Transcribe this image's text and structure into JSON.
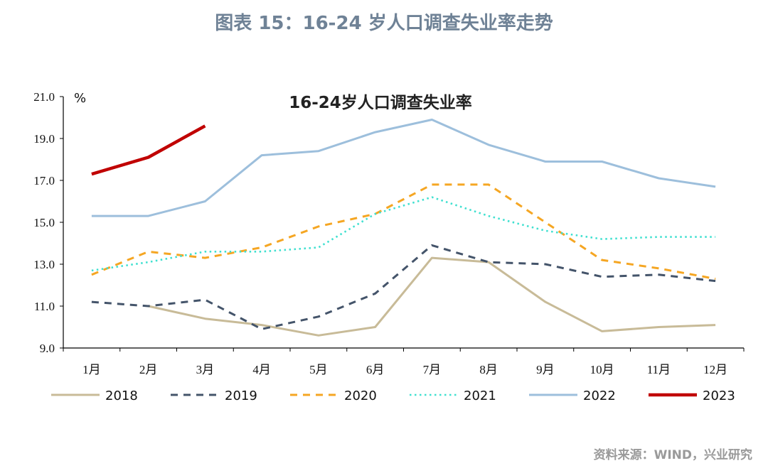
{
  "figure_title": "图表 15：16-24 岁人口调查失业率走势",
  "source_note": "资料来源：WIND，兴业研究",
  "chart_data": {
    "type": "line",
    "title": "16-24岁人口调查失业率",
    "ylabel": "%",
    "categories": [
      "1月",
      "2月",
      "3月",
      "4月",
      "5月",
      "6月",
      "7月",
      "8月",
      "9月",
      "10月",
      "11月",
      "12月"
    ],
    "ylim": [
      9.0,
      21.0
    ],
    "yticks": [
      "9.0",
      "11.0",
      "13.0",
      "15.0",
      "17.0",
      "19.0",
      "21.0"
    ],
    "grid": false,
    "legend_position": "bottom",
    "series": [
      {
        "name": "2018",
        "color": "#c8bb98",
        "style": "solid",
        "values": [
          null,
          11.0,
          10.4,
          10.1,
          9.6,
          10.0,
          13.3,
          13.1,
          11.2,
          9.8,
          10.0,
          10.1
        ]
      },
      {
        "name": "2019",
        "color": "#44546a",
        "style": "dashed",
        "values": [
          11.2,
          11.0,
          11.3,
          9.9,
          10.5,
          11.6,
          13.9,
          13.1,
          13.0,
          12.4,
          12.5,
          12.2
        ]
      },
      {
        "name": "2020",
        "color": "#f5a623",
        "style": "dashed",
        "values": [
          12.5,
          13.6,
          13.3,
          13.8,
          14.8,
          15.4,
          16.8,
          16.8,
          15.0,
          13.2,
          12.8,
          12.3
        ]
      },
      {
        "name": "2021",
        "color": "#40e0d0",
        "style": "dotted",
        "values": [
          12.7,
          13.1,
          13.6,
          13.6,
          13.8,
          15.4,
          16.2,
          15.3,
          14.6,
          14.2,
          14.3,
          14.3
        ]
      },
      {
        "name": "2022",
        "color": "#9dbfdc",
        "style": "solid",
        "values": [
          15.3,
          15.3,
          16.0,
          18.2,
          18.4,
          19.3,
          19.9,
          18.7,
          17.9,
          17.9,
          17.1,
          16.7
        ]
      },
      {
        "name": "2023",
        "color": "#c00000",
        "style": "solid",
        "values": [
          17.3,
          18.1,
          19.6,
          null,
          null,
          null,
          null,
          null,
          null,
          null,
          null,
          null
        ]
      }
    ]
  }
}
